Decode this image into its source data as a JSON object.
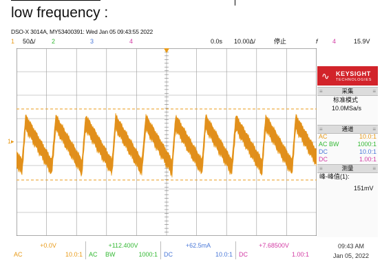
{
  "heading": "low frequency :",
  "system_info": "DSO-X 3014A, MY53400391: Wed Jan 05 09:43:55 2022",
  "status": {
    "ch1_num": "1",
    "ch1_scale": "50Δ/",
    "ch2_num": "2",
    "ch3_num": "3",
    "ch4_num": "4",
    "delay": "0.0s",
    "timebase": "10.00Δ/",
    "run_state": "停止",
    "trigger_icon": "f",
    "trigger_ch": "4",
    "trigger_level": "15.9V"
  },
  "panel": {
    "brand": "KEYSIGHT",
    "brand_sub": "TECHNOLOGIES",
    "acq_header": "采集",
    "acq_mode": "标准模式",
    "sample_rate": "10.0MSa/s",
    "chan_header": "通道",
    "channels": [
      {
        "coupling": "AC",
        "ratio": "10.0:1",
        "color": "#e89a18"
      },
      {
        "coupling": "AC BW",
        "ratio": "1000:1",
        "color": "#33b833"
      },
      {
        "coupling": "DC",
        "ratio": "10.0:1",
        "color": "#4a78d8"
      },
      {
        "coupling": "DC",
        "ratio": "1.00:1",
        "color": "#d23aa3"
      }
    ],
    "meas_header": "测量",
    "meas_label": "峰-峰值(1):",
    "meas_value": "151mV"
  },
  "bottom": [
    {
      "value": "+0.0V",
      "m1": "AC",
      "m2": "",
      "m3": "10.0:1",
      "color": "#e89a18"
    },
    {
      "value": "+112.400V",
      "m1": "AC",
      "m2": "BW",
      "m3": "1000:1",
      "color": "#33b833"
    },
    {
      "value": "+62.5mA",
      "m1": "DC",
      "m2": "",
      "m3": "10.0:1",
      "color": "#4a78d8"
    },
    {
      "value": "+7.68500V",
      "m1": "DC",
      "m2": "",
      "m3": "1.00:1",
      "color": "#d23aa3"
    }
  ],
  "time": "09:43 AM",
  "date": "Jan 05, 2022"
}
